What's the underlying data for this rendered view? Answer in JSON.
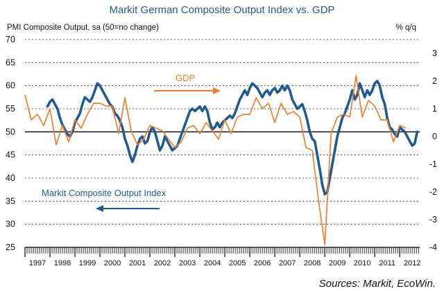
{
  "chart_data": {
    "type": "line",
    "title": "Markit German Composite Output Index vs. GDP",
    "left_axis_label": "PMI Composite Output, sa (50=no change)",
    "right_axis_label": "% q/q",
    "left_ticks": [
      "70",
      "65",
      "60",
      "55",
      "50",
      "45",
      "40",
      "35",
      "30",
      "25"
    ],
    "right_ticks": [
      "3",
      "2",
      "1",
      "0",
      "-1",
      "-2",
      "-3",
      "-4"
    ],
    "left_range": [
      25,
      70
    ],
    "right_range": [
      -4,
      3.5
    ],
    "x_labels": [
      "1997",
      "1998",
      "1999",
      "2000",
      "2001",
      "2002",
      "2003",
      "2004",
      "2005",
      "2006",
      "2007",
      "2008",
      "2009",
      "2010",
      "2011",
      "2012"
    ],
    "x_range": [
      1997,
      2012.8
    ],
    "annotations": {
      "gdp": "GDP",
      "pmi": "Markit Composite Output Index"
    },
    "source": "Sources: Markit, EcoWin.",
    "colors": {
      "pmi": "#1f5a92",
      "gdp": "#f07d2b",
      "title": "#1f5a92"
    },
    "series": [
      {
        "name": "Markit Composite Output Index",
        "axis": "left",
        "points": [
          [
            1997.9,
            55.5
          ],
          [
            1998.0,
            56.5
          ],
          [
            1998.1,
            57.0
          ],
          [
            1998.2,
            56.0
          ],
          [
            1998.3,
            55.0
          ],
          [
            1998.4,
            53.0
          ],
          [
            1998.5,
            51.5
          ],
          [
            1998.6,
            50.5
          ],
          [
            1998.7,
            49.5
          ],
          [
            1998.8,
            49.0
          ],
          [
            1998.9,
            50.0
          ],
          [
            1999.0,
            52.0
          ],
          [
            1999.2,
            54.0
          ],
          [
            1999.3,
            56.0
          ],
          [
            1999.4,
            57.5
          ],
          [
            1999.5,
            57.0
          ],
          [
            1999.6,
            56.5
          ],
          [
            1999.7,
            57.5
          ],
          [
            1999.8,
            59.0
          ],
          [
            1999.9,
            60.5
          ],
          [
            2000.0,
            60.0
          ],
          [
            2000.1,
            59.0
          ],
          [
            2000.2,
            58.0
          ],
          [
            2000.3,
            57.0
          ],
          [
            2000.4,
            56.0
          ],
          [
            2000.5,
            55.5
          ],
          [
            2000.6,
            54.0
          ],
          [
            2000.7,
            53.5
          ],
          [
            2000.8,
            52.5
          ],
          [
            2000.9,
            51.0
          ],
          [
            2001.0,
            48.5
          ],
          [
            2001.1,
            47.0
          ],
          [
            2001.2,
            45.0
          ],
          [
            2001.3,
            43.5
          ],
          [
            2001.4,
            45.0
          ],
          [
            2001.5,
            47.0
          ],
          [
            2001.6,
            48.5
          ],
          [
            2001.7,
            49.0
          ],
          [
            2001.8,
            47.5
          ],
          [
            2001.9,
            48.0
          ],
          [
            2002.0,
            50.0
          ],
          [
            2002.1,
            51.0
          ],
          [
            2002.2,
            50.0
          ],
          [
            2002.3,
            48.0
          ],
          [
            2002.4,
            46.0
          ],
          [
            2002.5,
            47.0
          ],
          [
            2002.6,
            49.0
          ],
          [
            2002.7,
            48.0
          ],
          [
            2002.8,
            47.0
          ],
          [
            2002.9,
            46.0
          ],
          [
            2003.0,
            46.5
          ],
          [
            2003.1,
            47.0
          ],
          [
            2003.2,
            48.5
          ],
          [
            2003.3,
            50.0
          ],
          [
            2003.4,
            51.5
          ],
          [
            2003.5,
            53.0
          ],
          [
            2003.6,
            54.5
          ],
          [
            2003.7,
            55.0
          ],
          [
            2003.8,
            54.5
          ],
          [
            2003.9,
            55.0
          ],
          [
            2004.0,
            55.5
          ],
          [
            2004.1,
            54.5
          ],
          [
            2004.2,
            55.5
          ],
          [
            2004.3,
            54.5
          ],
          [
            2004.4,
            52.0
          ],
          [
            2004.5,
            50.5
          ],
          [
            2004.6,
            51.0
          ],
          [
            2004.7,
            52.0
          ],
          [
            2004.8,
            51.0
          ],
          [
            2004.9,
            52.0
          ],
          [
            2005.0,
            52.5
          ],
          [
            2005.1,
            53.0
          ],
          [
            2005.2,
            53.5
          ],
          [
            2005.3,
            53.0
          ],
          [
            2005.4,
            54.0
          ],
          [
            2005.5,
            55.5
          ],
          [
            2005.6,
            57.0
          ],
          [
            2005.7,
            58.0
          ],
          [
            2005.8,
            59.0
          ],
          [
            2005.9,
            58.0
          ],
          [
            2006.0,
            59.5
          ],
          [
            2006.1,
            60.5
          ],
          [
            2006.2,
            60.0
          ],
          [
            2006.3,
            59.5
          ],
          [
            2006.4,
            58.5
          ],
          [
            2006.5,
            57.5
          ],
          [
            2006.6,
            58.5
          ],
          [
            2006.7,
            59.0
          ],
          [
            2006.8,
            58.0
          ],
          [
            2006.9,
            59.0
          ],
          [
            2007.0,
            59.5
          ],
          [
            2007.1,
            58.5
          ],
          [
            2007.2,
            59.0
          ],
          [
            2007.3,
            60.0
          ],
          [
            2007.4,
            59.0
          ],
          [
            2007.5,
            60.0
          ],
          [
            2007.6,
            59.0
          ],
          [
            2007.7,
            57.0
          ],
          [
            2007.8,
            56.0
          ],
          [
            2007.9,
            55.0
          ],
          [
            2008.0,
            55.5
          ],
          [
            2008.1,
            56.0
          ],
          [
            2008.2,
            54.5
          ],
          [
            2008.3,
            52.5
          ],
          [
            2008.4,
            50.0
          ],
          [
            2008.5,
            48.5
          ],
          [
            2008.6,
            48.0
          ],
          [
            2008.7,
            45.0
          ],
          [
            2008.8,
            42.0
          ],
          [
            2008.9,
            38.5
          ],
          [
            2009.0,
            36.5
          ],
          [
            2009.1,
            37.0
          ],
          [
            2009.2,
            40.0
          ],
          [
            2009.3,
            43.0
          ],
          [
            2009.4,
            46.0
          ],
          [
            2009.5,
            49.0
          ],
          [
            2009.6,
            51.0
          ],
          [
            2009.7,
            53.0
          ],
          [
            2009.8,
            54.0
          ],
          [
            2009.9,
            55.5
          ],
          [
            2010.0,
            57.0
          ],
          [
            2010.1,
            59.0
          ],
          [
            2010.2,
            57.0
          ],
          [
            2010.3,
            58.0
          ],
          [
            2010.4,
            60.5
          ],
          [
            2010.5,
            59.0
          ],
          [
            2010.6,
            57.5
          ],
          [
            2010.7,
            59.0
          ],
          [
            2010.8,
            58.0
          ],
          [
            2010.9,
            59.0
          ],
          [
            2011.0,
            60.5
          ],
          [
            2011.1,
            61.0
          ],
          [
            2011.2,
            60.0
          ],
          [
            2011.3,
            57.5
          ],
          [
            2011.4,
            56.0
          ],
          [
            2011.5,
            53.0
          ],
          [
            2011.6,
            51.0
          ],
          [
            2011.7,
            50.5
          ],
          [
            2011.8,
            49.5
          ],
          [
            2011.9,
            49.0
          ],
          [
            2012.0,
            51.0
          ],
          [
            2012.1,
            50.5
          ],
          [
            2012.2,
            50.0
          ],
          [
            2012.3,
            49.0
          ],
          [
            2012.4,
            48.0
          ],
          [
            2012.5,
            47.0
          ],
          [
            2012.6,
            47.5
          ],
          [
            2012.7,
            50.0
          ]
        ]
      },
      {
        "name": "GDP",
        "axis": "right",
        "points": [
          [
            1997.0,
            1.5
          ],
          [
            1997.25,
            0.6
          ],
          [
            1997.5,
            0.8
          ],
          [
            1997.75,
            0.4
          ],
          [
            1998.0,
            1.0
          ],
          [
            1998.25,
            -0.3
          ],
          [
            1998.5,
            0.4
          ],
          [
            1998.75,
            -0.2
          ],
          [
            1999.0,
            0.6
          ],
          [
            1999.25,
            0.3
          ],
          [
            1999.5,
            0.8
          ],
          [
            1999.75,
            1.2
          ],
          [
            2000.0,
            1.2
          ],
          [
            2000.25,
            1.1
          ],
          [
            2000.5,
            1.1
          ],
          [
            2000.75,
            0.1
          ],
          [
            2001.0,
            1.4
          ],
          [
            2001.25,
            0.2
          ],
          [
            2001.5,
            -0.3
          ],
          [
            2001.75,
            -0.1
          ],
          [
            2002.0,
            0.4
          ],
          [
            2002.25,
            0.3
          ],
          [
            2002.5,
            0.2
          ],
          [
            2002.75,
            -0.1
          ],
          [
            2003.0,
            -0.4
          ],
          [
            2003.25,
            -0.2
          ],
          [
            2003.5,
            0.3
          ],
          [
            2003.75,
            0.4
          ],
          [
            2004.0,
            0.1
          ],
          [
            2004.25,
            0.5
          ],
          [
            2004.5,
            0.2
          ],
          [
            2004.75,
            -0.1
          ],
          [
            2005.0,
            0.6
          ],
          [
            2005.25,
            0.1
          ],
          [
            2005.5,
            0.7
          ],
          [
            2005.75,
            0.8
          ],
          [
            2006.0,
            0.8
          ],
          [
            2006.25,
            1.4
          ],
          [
            2006.5,
            1.0
          ],
          [
            2006.75,
            1.2
          ],
          [
            2007.0,
            0.5
          ],
          [
            2007.25,
            1.2
          ],
          [
            2007.5,
            0.8
          ],
          [
            2007.75,
            0.9
          ],
          [
            2008.0,
            0.7
          ],
          [
            2008.25,
            -0.4
          ],
          [
            2008.5,
            -0.5
          ],
          [
            2008.75,
            -2.3
          ],
          [
            2009.0,
            -3.9
          ],
          [
            2009.25,
            0.1
          ],
          [
            2009.5,
            0.7
          ],
          [
            2009.75,
            0.8
          ],
          [
            2010.0,
            0.7
          ],
          [
            2010.25,
            2.2
          ],
          [
            2010.5,
            0.7
          ],
          [
            2010.75,
            1.3
          ],
          [
            2011.0,
            1.1
          ],
          [
            2011.25,
            0.6
          ],
          [
            2011.5,
            0.6
          ],
          [
            2011.75,
            -0.2
          ],
          [
            2012.0,
            0.4
          ],
          [
            2012.25,
            0.3
          ]
        ]
      }
    ]
  }
}
